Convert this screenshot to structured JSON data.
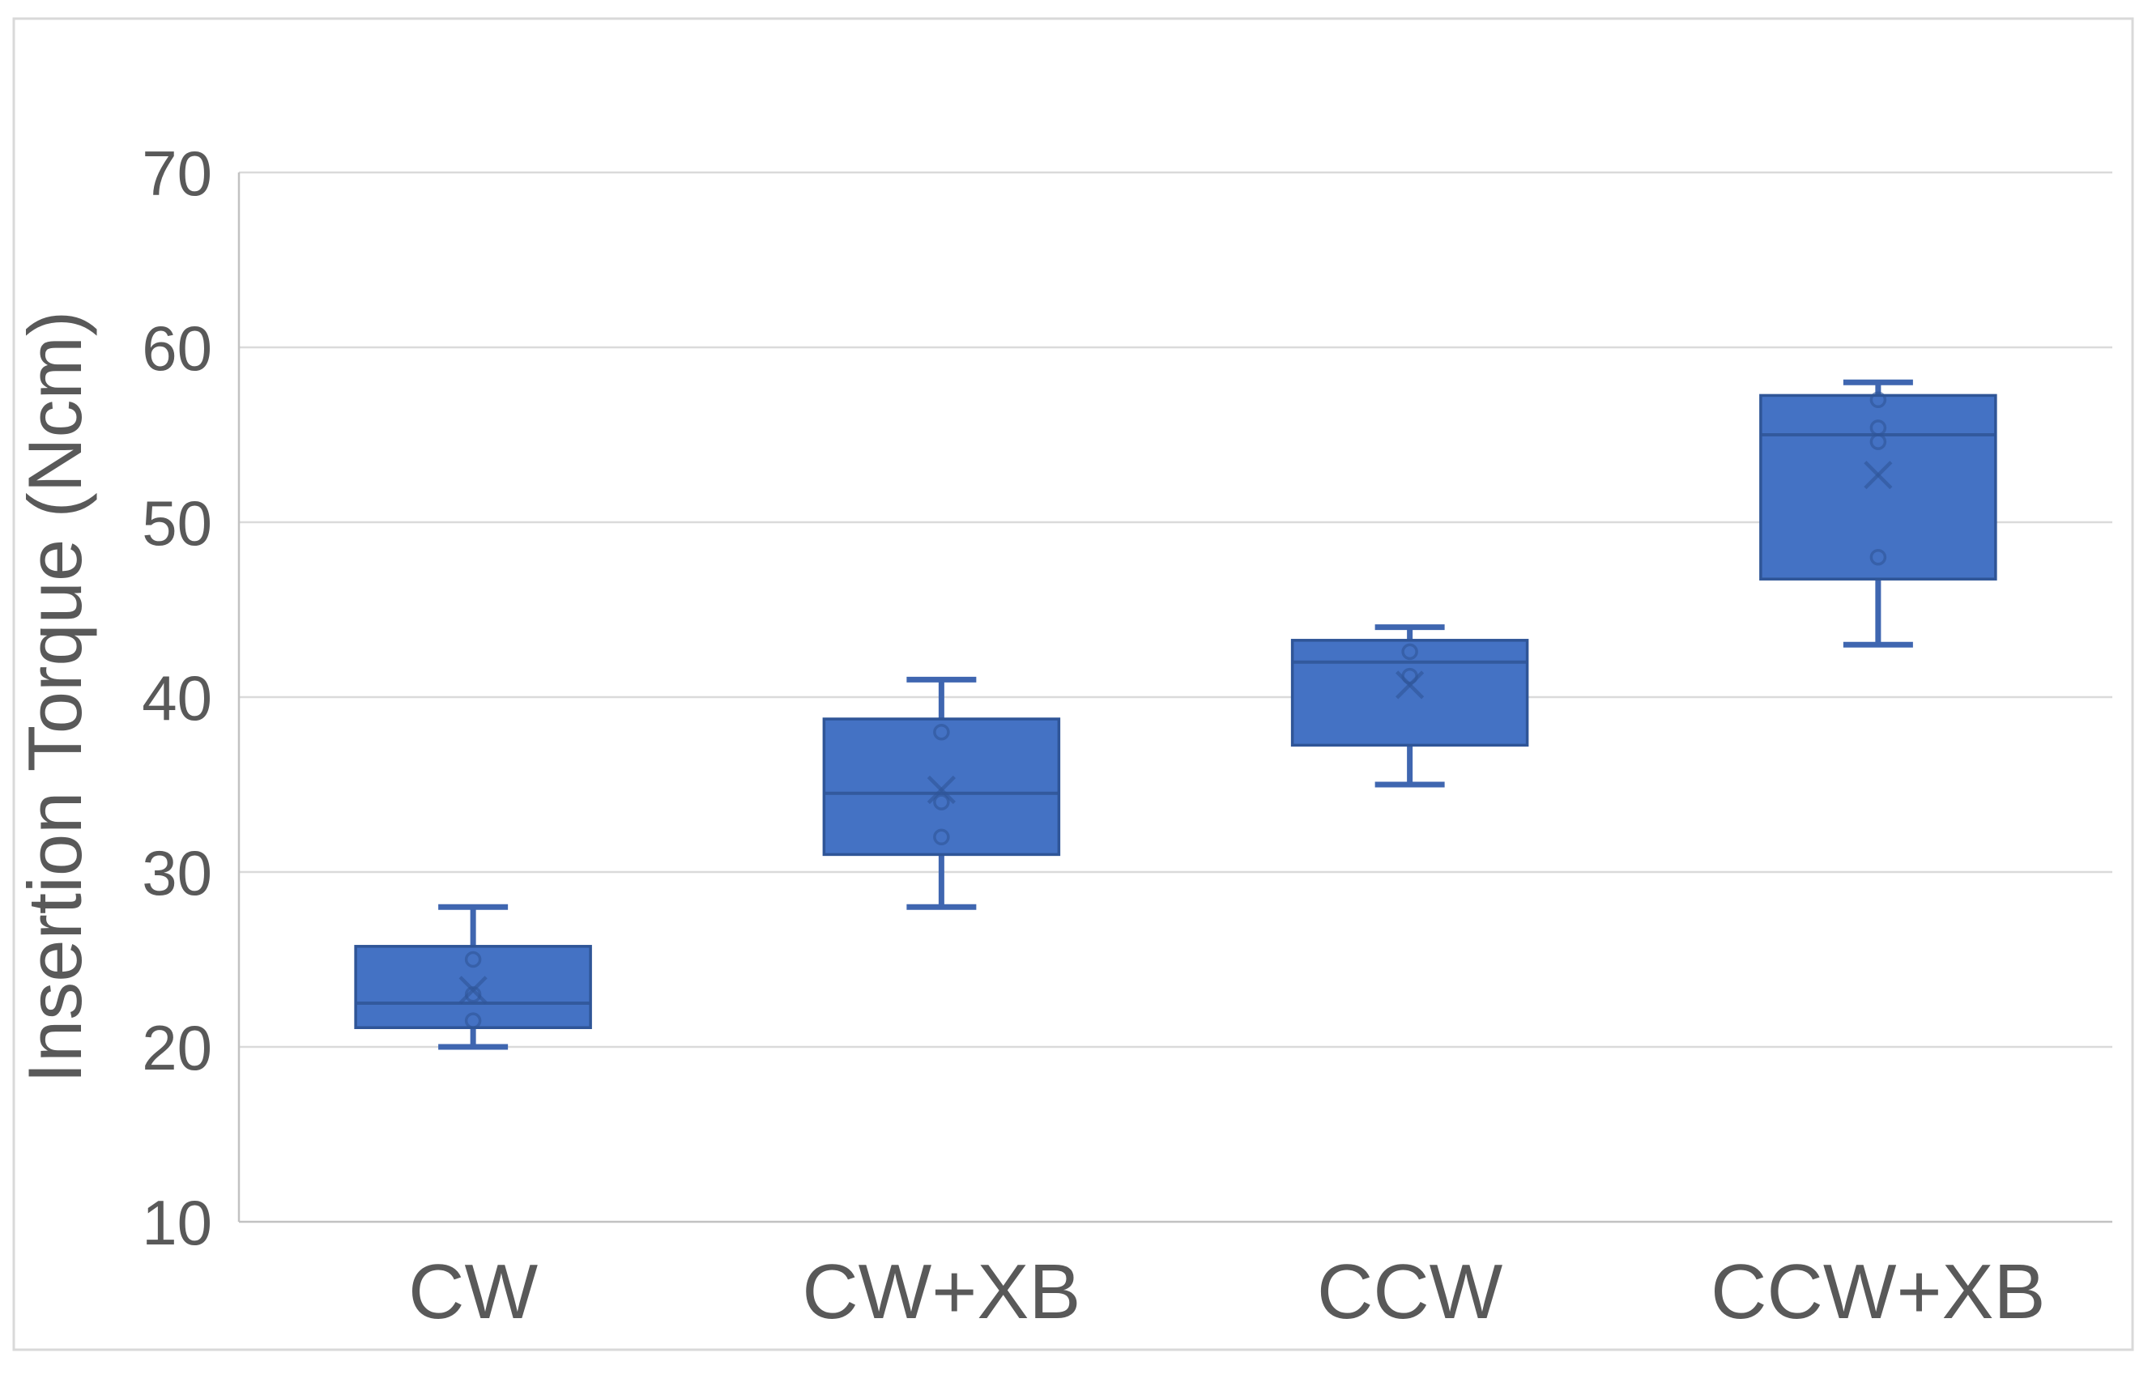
{
  "chart_data": {
    "type": "box",
    "title": "",
    "ylabel": "Insertion Torque (Ncm)",
    "xlabel": "",
    "categories": [
      "CW",
      "CW+XB",
      "CCW",
      "CCW+XB"
    ],
    "ylim": [
      10,
      70
    ],
    "yticks": [
      10,
      20,
      30,
      40,
      50,
      60,
      70
    ],
    "grid": true,
    "legend_position": "none",
    "series": [
      {
        "category": "CW",
        "whisker_low": 20,
        "q1": 21.1,
        "median": 22.5,
        "q3": 25.75,
        "whisker_high": 28,
        "mean": 23.25,
        "points": [
          25,
          23,
          21.5
        ]
      },
      {
        "category": "CW+XB",
        "whisker_low": 28,
        "q1": 31,
        "median": 34.5,
        "q3": 38.75,
        "whisker_high": 41,
        "mean": 34.7,
        "points": [
          38,
          34,
          32
        ]
      },
      {
        "category": "CCW",
        "whisker_low": 35,
        "q1": 37.25,
        "median": 42,
        "q3": 43.25,
        "whisker_high": 44,
        "mean": 40.7,
        "points": [
          42.6,
          41.2
        ]
      },
      {
        "category": "CCW+XB",
        "whisker_low": 43,
        "q1": 46.75,
        "median": 55,
        "q3": 57.25,
        "whisker_high": 58,
        "mean": 52.7,
        "points": [
          57,
          55.4,
          54.6,
          48
        ]
      }
    ],
    "colors": {
      "box_fill": "#4472C4",
      "box_border": "#2F5597",
      "whisker": "#3F66B0",
      "median_line": "#2F5597",
      "marker": "#2F5597",
      "gridline": "#DADADA",
      "axis_line": "#C2C2C2",
      "text": "#595959",
      "chart_border": "#D9D9D9",
      "background": "#FFFFFF"
    }
  }
}
